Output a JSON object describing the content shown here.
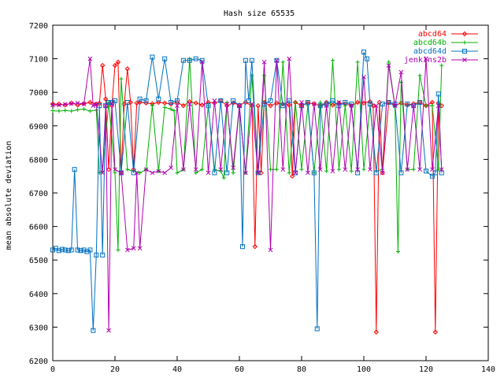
{
  "chart_data": {
    "type": "line",
    "title": "Hash size 65535",
    "xlabel": "",
    "ylabel": "mean absolute deviation",
    "xlim": [
      0,
      140
    ],
    "ylim": [
      6200,
      7200
    ],
    "xticks": [
      0,
      20,
      40,
      60,
      80,
      100,
      120,
      140
    ],
    "yticks": [
      6200,
      6300,
      6400,
      6500,
      6600,
      6700,
      6800,
      6900,
      7000,
      7100,
      7200
    ],
    "grid": false,
    "legend_position": "top-right",
    "series": [
      {
        "name": "abcd64",
        "color": "#ff0000",
        "marker": "diamond",
        "x": [
          0,
          2,
          4,
          6,
          8,
          10,
          12,
          14,
          15,
          16,
          17,
          18,
          19,
          20,
          21,
          22,
          23,
          24,
          25,
          26,
          27,
          28,
          30,
          32,
          34,
          36,
          38,
          40,
          42,
          44,
          46,
          48,
          50,
          52,
          54,
          56,
          58,
          60,
          62,
          64,
          65,
          66,
          67,
          68,
          70,
          72,
          74,
          76,
          77,
          78,
          80,
          82,
          84,
          86,
          88,
          90,
          92,
          94,
          96,
          98,
          100,
          102,
          103,
          104,
          105,
          106,
          108,
          110,
          112,
          114,
          116,
          118,
          120,
          122,
          123,
          124,
          125
        ],
        "y": [
          6965,
          6965,
          6962,
          6968,
          6962,
          6966,
          6970,
          6965,
          6967,
          7080,
          6980,
          6770,
          6960,
          7080,
          7090,
          6760,
          6965,
          7070,
          6970,
          6770,
          6968,
          6970,
          6968,
          6966,
          6970,
          6968,
          6965,
          6970,
          6960,
          6972,
          6968,
          6962,
          6970,
          6968,
          6975,
          6960,
          6968,
          6962,
          6970,
          6960,
          6540,
          6960,
          6760,
          6970,
          6960,
          6968,
          6965,
          6962,
          6750,
          6970,
          6960,
          6968,
          6966,
          6960,
          6970,
          6962,
          6968,
          6966,
          6960,
          6970,
          6968,
          6972,
          6960,
          6285,
          6970,
          6760,
          6970,
          6960,
          6968,
          6962,
          6966,
          6970,
          6960,
          6970,
          6285,
          6968,
          6960
        ]
      },
      {
        "name": "abcd64b",
        "color": "#00b000",
        "marker": "plus",
        "x": [
          0,
          2,
          4,
          6,
          8,
          10,
          12,
          14,
          15,
          16,
          18,
          20,
          21,
          22,
          24,
          26,
          28,
          30,
          32,
          34,
          36,
          38,
          39,
          40,
          42,
          44,
          46,
          48,
          50,
          52,
          54,
          55,
          56,
          58,
          60,
          62,
          64,
          66,
          68,
          70,
          72,
          74,
          76,
          78,
          80,
          82,
          84,
          86,
          88,
          90,
          92,
          94,
          96,
          98,
          100,
          102,
          104,
          106,
          108,
          110,
          111,
          112,
          114,
          116,
          118,
          120,
          122,
          124,
          125
        ],
        "y": [
          6945,
          6944,
          6946,
          6944,
          6948,
          6950,
          6944,
          6947,
          6760,
          6765,
          6970,
          6760,
          6530,
          7040,
          6770,
          6765,
          6760,
          6770,
          6960,
          6765,
          6955,
          6950,
          6945,
          6760,
          6770,
          7100,
          6760,
          6770,
          6960,
          6770,
          6765,
          6745,
          6970,
          6760,
          6955,
          6760,
          7050,
          6760,
          7050,
          6770,
          6770,
          7090,
          6760,
          6970,
          6770,
          6960,
          6760,
          6970,
          6765,
          7095,
          6770,
          6960,
          6765,
          7090,
          6770,
          6960,
          6765,
          6770,
          7090,
          6960,
          6525,
          7030,
          6770,
          6770,
          7050,
          6960,
          6960,
          6770,
          7080
        ]
      },
      {
        "name": "abcd64d",
        "color": "#0070c0",
        "marker": "square",
        "x": [
          0,
          1,
          2,
          3,
          4,
          5,
          6,
          7,
          8,
          9,
          10,
          11,
          12,
          13,
          14,
          15,
          16,
          17,
          18,
          19,
          20,
          22,
          24,
          26,
          28,
          30,
          32,
          34,
          36,
          38,
          40,
          42,
          44,
          46,
          48,
          50,
          52,
          54,
          56,
          58,
          60,
          61,
          62,
          63,
          64,
          66,
          68,
          70,
          72,
          74,
          76,
          78,
          80,
          82,
          84,
          85,
          86,
          88,
          90,
          92,
          94,
          96,
          98,
          100,
          101,
          102,
          104,
          106,
          108,
          110,
          112,
          114,
          116,
          118,
          120,
          122,
          123,
          124,
          125
        ],
        "y": [
          6530,
          6535,
          6528,
          6532,
          6530,
          6528,
          6530,
          6770,
          6530,
          6528,
          6530,
          6525,
          6530,
          6290,
          6515,
          6960,
          6515,
          6960,
          6970,
          6970,
          6975,
          6760,
          6970,
          6760,
          6980,
          6975,
          7105,
          6980,
          7100,
          6970,
          6975,
          7095,
          7095,
          7100,
          7095,
          6960,
          6760,
          6975,
          6760,
          6975,
          6960,
          6540,
          7095,
          6975,
          7095,
          6760,
          6965,
          6975,
          7095,
          6960,
          6975,
          6760,
          6960,
          6970,
          6760,
          6295,
          6960,
          6965,
          6975,
          6960,
          6970,
          6965,
          6760,
          7120,
          7100,
          6965,
          6760,
          6965,
          6970,
          6965,
          6760,
          6965,
          6960,
          6970,
          6765,
          6750,
          6760,
          6995,
          6760
        ]
      },
      {
        "name": "jenkins2b",
        "color": "#b000b0",
        "marker": "cross",
        "x": [
          0,
          2,
          4,
          6,
          8,
          10,
          12,
          13,
          14,
          16,
          17,
          18,
          19,
          20,
          22,
          24,
          26,
          27,
          28,
          30,
          32,
          34,
          36,
          38,
          40,
          42,
          44,
          46,
          48,
          50,
          52,
          54,
          56,
          58,
          60,
          62,
          64,
          66,
          68,
          70,
          72,
          74,
          76,
          78,
          80,
          82,
          84,
          86,
          88,
          90,
          92,
          94,
          96,
          98,
          100,
          102,
          104,
          106,
          108,
          110,
          112,
          114,
          116,
          118,
          120,
          122,
          124,
          125
        ],
        "y": [
          6962,
          6962,
          6964,
          6966,
          6968,
          6965,
          7100,
          6960,
          6965,
          6760,
          6960,
          6290,
          6965,
          6770,
          6760,
          6530,
          6535,
          6760,
          6535,
          6770,
          6760,
          6765,
          6760,
          6775,
          6960,
          6770,
          6965,
          6770,
          7090,
          6760,
          6975,
          6770,
          6965,
          6775,
          6960,
          6760,
          6965,
          6760,
          7090,
          6530,
          7095,
          6770,
          7100,
          6760,
          6970,
          6760,
          6965,
          6770,
          6960,
          6765,
          6970,
          6770,
          6960,
          6770,
          7045,
          6770,
          6960,
          6760,
          7080,
          6960,
          7060,
          6770,
          6960,
          6770,
          7100,
          6770,
          6960,
          6770
        ]
      }
    ]
  }
}
